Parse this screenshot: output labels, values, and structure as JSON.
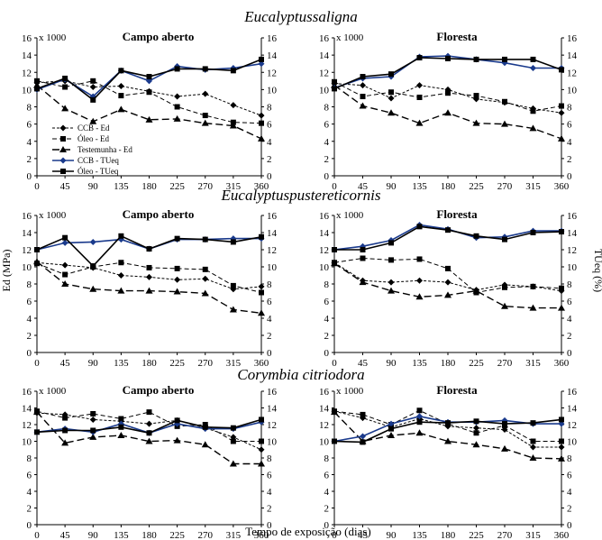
{
  "rows": [
    {
      "species": "Eucalyptussaligna"
    },
    {
      "species": "Eucalyptuspustereticornis"
    },
    {
      "species": "Corymbia citriodora"
    }
  ],
  "x_label": "Tempo de  exposição (dias)",
  "y_left_label": "Ed (MPa)",
  "y_right_label": "TUeq (%)",
  "scale_label": "x 1000",
  "legend": [
    "CCB - Ed",
    "Óleo - Ed",
    "Testemunha - Ed",
    "CCB - TUeq",
    "Óleo - TUeq"
  ],
  "colors": {
    "ink": "#000000",
    "ccb_tueq": "#1a3a8c"
  },
  "chart_data": [
    {
      "type": "line",
      "panel": "saligna-campo",
      "title": "Campo aberto",
      "x": [
        0,
        45,
        90,
        135,
        180,
        225,
        270,
        315,
        360
      ],
      "ylim_left": [
        0,
        16
      ],
      "ylim_right": [
        0,
        16
      ],
      "y_ticks": [
        0,
        2,
        4,
        6,
        8,
        10,
        12,
        14,
        16
      ],
      "series": [
        {
          "name": "CCB - Ed",
          "axis": "left",
          "values": [
            10.8,
            11.0,
            10.3,
            10.4,
            9.8,
            9.2,
            9.5,
            8.2,
            7.0
          ]
        },
        {
          "name": "Óleo - Ed",
          "axis": "left",
          "values": [
            11.0,
            10.3,
            11.0,
            9.3,
            9.7,
            8.0,
            7.0,
            6.2,
            6.1
          ]
        },
        {
          "name": "Testemunha - Ed",
          "axis": "left",
          "values": [
            10.5,
            7.8,
            6.3,
            7.7,
            6.5,
            6.6,
            6.1,
            5.8,
            4.3
          ]
        },
        {
          "name": "CCB - TUeq",
          "axis": "right",
          "values": [
            10.0,
            11.2,
            9.2,
            12.2,
            11.0,
            12.7,
            12.3,
            12.5,
            13.0
          ]
        },
        {
          "name": "Óleo - TUeq",
          "axis": "right",
          "values": [
            10.1,
            11.3,
            8.8,
            12.2,
            11.5,
            12.4,
            12.4,
            12.2,
            13.5
          ]
        }
      ]
    },
    {
      "type": "line",
      "panel": "saligna-floresta",
      "title": "Floresta",
      "x": [
        0,
        45,
        90,
        135,
        180,
        225,
        270,
        315,
        360
      ],
      "ylim_left": [
        0,
        16
      ],
      "ylim_right": [
        0,
        16
      ],
      "y_ticks": [
        0,
        2,
        4,
        6,
        8,
        10,
        12,
        14,
        16
      ],
      "series": [
        {
          "name": "CCB - Ed",
          "axis": "left",
          "values": [
            10.7,
            10.5,
            9.0,
            10.5,
            10.0,
            8.9,
            8.5,
            7.8,
            7.3
          ]
        },
        {
          "name": "Óleo - Ed",
          "axis": "left",
          "values": [
            10.9,
            9.2,
            9.7,
            9.1,
            9.6,
            9.3,
            8.6,
            7.5,
            8.1
          ]
        },
        {
          "name": "Testemunha - Ed",
          "axis": "left",
          "values": [
            10.5,
            8.1,
            7.3,
            6.1,
            7.3,
            6.1,
            6.0,
            5.5,
            4.3
          ]
        },
        {
          "name": "CCB - TUeq",
          "axis": "right",
          "values": [
            10.2,
            11.3,
            11.5,
            13.8,
            13.9,
            13.5,
            13.1,
            12.5,
            12.5
          ]
        },
        {
          "name": "Óleo - TUeq",
          "axis": "right",
          "values": [
            10.1,
            11.5,
            11.8,
            13.7,
            13.6,
            13.5,
            13.5,
            13.5,
            12.3
          ]
        }
      ]
    },
    {
      "type": "line",
      "panel": "tereticornis-campo",
      "title": "Campo aberto",
      "x": [
        0,
        45,
        90,
        135,
        180,
        225,
        270,
        315,
        360
      ],
      "ylim_left": [
        0,
        16
      ],
      "ylim_right": [
        0,
        16
      ],
      "y_ticks": [
        0,
        2,
        4,
        6,
        8,
        10,
        12,
        14,
        16
      ],
      "series": [
        {
          "name": "CCB - Ed",
          "axis": "left",
          "values": [
            10.5,
            10.2,
            9.9,
            9.0,
            8.8,
            8.5,
            8.6,
            7.4,
            7.7
          ]
        },
        {
          "name": "Óleo - Ed",
          "axis": "left",
          "values": [
            10.4,
            9.1,
            10.0,
            10.5,
            9.9,
            9.8,
            9.7,
            7.8,
            7.0
          ]
        },
        {
          "name": "Testemunha - Ed",
          "axis": "left",
          "values": [
            10.6,
            8.0,
            7.4,
            7.2,
            7.2,
            7.1,
            6.9,
            5.0,
            4.6
          ]
        },
        {
          "name": "CCB - TUeq",
          "axis": "right",
          "values": [
            12.0,
            12.8,
            12.9,
            13.2,
            12.1,
            13.2,
            13.2,
            13.3,
            13.3
          ]
        },
        {
          "name": "Óleo - TUeq",
          "axis": "right",
          "values": [
            12.0,
            13.4,
            10.1,
            13.6,
            12.1,
            13.3,
            13.2,
            12.9,
            13.5
          ]
        }
      ]
    },
    {
      "type": "line",
      "panel": "tereticornis-floresta",
      "title": "Floresta",
      "x": [
        0,
        45,
        90,
        135,
        180,
        225,
        270,
        315,
        360
      ],
      "ylim_left": [
        0,
        16
      ],
      "ylim_right": [
        0,
        16
      ],
      "y_ticks": [
        0,
        2,
        4,
        6,
        8,
        10,
        12,
        14,
        16
      ],
      "series": [
        {
          "name": "CCB - Ed",
          "axis": "left",
          "values": [
            10.5,
            8.4,
            8.2,
            8.4,
            8.2,
            7.3,
            7.9,
            7.7,
            7.2
          ]
        },
        {
          "name": "Óleo - Ed",
          "axis": "left",
          "values": [
            10.5,
            11.0,
            10.8,
            10.9,
            9.8,
            7.0,
            7.6,
            7.7,
            7.5
          ]
        },
        {
          "name": "Testemunha - Ed",
          "axis": "left",
          "values": [
            10.4,
            8.2,
            7.2,
            6.5,
            6.7,
            7.2,
            5.4,
            5.2,
            5.2
          ]
        },
        {
          "name": "CCB - TUeq",
          "axis": "right",
          "values": [
            12.0,
            12.4,
            13.1,
            14.9,
            14.4,
            13.4,
            13.5,
            14.2,
            14.2
          ]
        },
        {
          "name": "Óleo - TUeq",
          "axis": "right",
          "values": [
            12.0,
            12.0,
            12.8,
            14.7,
            14.3,
            13.6,
            13.2,
            14.0,
            14.1
          ]
        }
      ]
    },
    {
      "type": "line",
      "panel": "citriodora-campo",
      "title": "Campo aberto",
      "x": [
        0,
        45,
        90,
        135,
        180,
        225,
        270,
        315,
        360
      ],
      "ylim_left": [
        0,
        16
      ],
      "ylim_right": [
        0,
        16
      ],
      "y_ticks": [
        0,
        2,
        4,
        6,
        8,
        10,
        12,
        14,
        16
      ],
      "series": [
        {
          "name": "CCB - Ed",
          "axis": "left",
          "values": [
            13.4,
            13.2,
            12.6,
            12.4,
            12.1,
            12.5,
            11.6,
            10.5,
            9.0
          ]
        },
        {
          "name": "Óleo - Ed",
          "axis": "left",
          "values": [
            13.6,
            12.8,
            13.3,
            12.7,
            13.5,
            11.8,
            12.0,
            10.0,
            10.0
          ]
        },
        {
          "name": "Testemunha - Ed",
          "axis": "left",
          "values": [
            13.5,
            9.8,
            10.5,
            10.7,
            10.0,
            10.1,
            9.6,
            7.3,
            7.3
          ]
        },
        {
          "name": "CCB - TUeq",
          "axis": "right",
          "values": [
            11.1,
            11.5,
            11.1,
            12.1,
            11.0,
            12.1,
            11.5,
            11.5,
            12.3
          ]
        },
        {
          "name": "Óleo - TUeq",
          "axis": "right",
          "values": [
            11.1,
            11.3,
            11.3,
            11.7,
            11.0,
            12.5,
            11.7,
            11.6,
            12.6
          ]
        }
      ]
    },
    {
      "type": "line",
      "panel": "citriodora-floresta",
      "title": "Floresta",
      "x": [
        0,
        45,
        90,
        135,
        180,
        225,
        270,
        315,
        360
      ],
      "ylim_left": [
        0,
        16
      ],
      "ylim_right": [
        0,
        16
      ],
      "y_ticks": [
        0,
        2,
        4,
        6,
        8,
        10,
        12,
        14,
        16
      ],
      "series": [
        {
          "name": "CCB - Ed",
          "axis": "left",
          "values": [
            13.6,
            12.8,
            11.7,
            12.7,
            11.8,
            11.6,
            11.4,
            9.3,
            9.3
          ]
        },
        {
          "name": "Óleo - Ed",
          "axis": "left",
          "values": [
            13.6,
            13.2,
            12.0,
            13.7,
            12.1,
            11.0,
            11.9,
            10.0,
            10.0
          ]
        },
        {
          "name": "Testemunha - Ed",
          "axis": "left",
          "values": [
            13.5,
            10.0,
            10.7,
            11.0,
            10.0,
            9.6,
            9.1,
            8.0,
            7.9
          ]
        },
        {
          "name": "CCB - TUeq",
          "axis": "right",
          "values": [
            10.0,
            10.6,
            12.1,
            13.0,
            12.3,
            12.3,
            12.5,
            12.1,
            12.1
          ]
        },
        {
          "name": "Óleo - TUeq",
          "axis": "right",
          "values": [
            10.0,
            9.9,
            11.5,
            12.3,
            12.2,
            12.4,
            12.1,
            12.2,
            12.6
          ]
        }
      ]
    }
  ]
}
